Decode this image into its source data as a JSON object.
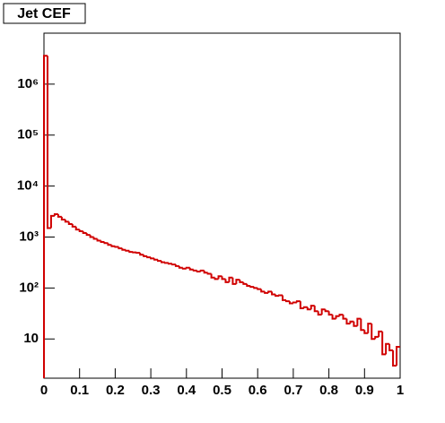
{
  "chart_data": {
    "type": "histogram",
    "title": "Jet CEF",
    "bins": [
      0,
      0.01,
      0.02,
      0.03,
      0.04,
      0.05,
      0.06,
      0.07,
      0.08,
      0.09,
      0.1,
      0.11,
      0.12,
      0.13,
      0.14,
      0.15,
      0.16,
      0.17,
      0.18,
      0.19,
      0.2,
      0.21,
      0.22,
      0.23,
      0.24,
      0.25,
      0.26,
      0.27,
      0.28,
      0.29,
      0.3,
      0.31,
      0.32,
      0.33,
      0.34,
      0.35,
      0.36,
      0.37,
      0.38,
      0.39,
      0.4,
      0.41,
      0.42,
      0.43,
      0.44,
      0.45,
      0.46,
      0.47,
      0.48,
      0.49,
      0.5,
      0.51,
      0.52,
      0.53,
      0.54,
      0.55,
      0.56,
      0.57,
      0.58,
      0.59,
      0.6,
      0.61,
      0.62,
      0.63,
      0.64,
      0.65,
      0.66,
      0.67,
      0.68,
      0.69,
      0.7,
      0.71,
      0.72,
      0.73,
      0.74,
      0.75,
      0.76,
      0.77,
      0.78,
      0.79,
      0.8,
      0.81,
      0.82,
      0.83,
      0.84,
      0.85,
      0.86,
      0.87,
      0.88,
      0.89,
      0.9,
      0.91,
      0.92,
      0.93,
      0.94,
      0.95,
      0.96,
      0.97,
      0.98,
      0.99,
      1
    ],
    "values": [
      3600000,
      1500,
      2600,
      2800,
      2500,
      2200,
      2000,
      1800,
      1600,
      1400,
      1300,
      1200,
      1100,
      1000,
      920,
      850,
      800,
      760,
      700,
      660,
      640,
      600,
      560,
      540,
      510,
      500,
      490,
      450,
      420,
      400,
      380,
      360,
      340,
      320,
      310,
      300,
      290,
      270,
      250,
      240,
      250,
      230,
      220,
      210,
      220,
      200,
      190,
      160,
      150,
      170,
      150,
      130,
      160,
      120,
      145,
      130,
      120,
      110,
      105,
      100,
      95,
      85,
      80,
      85,
      75,
      70,
      72,
      58,
      55,
      50,
      52,
      55,
      40,
      42,
      38,
      45,
      35,
      30,
      38,
      35,
      30,
      25,
      28,
      30,
      25,
      20,
      22,
      18,
      25,
      15,
      13,
      20,
      10,
      11,
      14,
      5,
      8,
      6,
      3,
      7
    ],
    "color": "#d00000",
    "xlim": [
      0,
      1
    ],
    "xticks": [
      0,
      0.1,
      0.2,
      0.3,
      0.4,
      0.5,
      0.6,
      0.7,
      0.8,
      0.9,
      1
    ],
    "ylim": [
      1.7,
      10000000
    ],
    "log_y": true,
    "yticks": [
      10,
      {
        "value": 100,
        "label": "10²"
      },
      {
        "value": 1000,
        "label": "10³"
      },
      {
        "value": 10000,
        "label": "10⁴"
      },
      {
        "value": 100000,
        "label": "10⁵"
      },
      {
        "value": 1000000,
        "label": "10⁶"
      }
    ]
  }
}
